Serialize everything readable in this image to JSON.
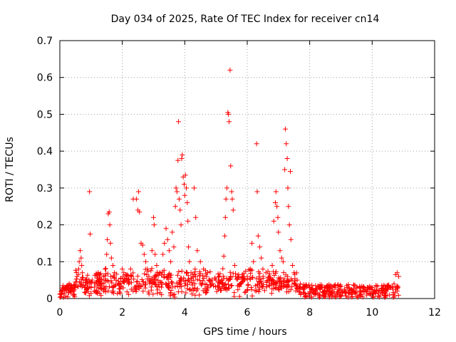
{
  "chart_data": {
    "type": "scatter",
    "title": "Day 034 of 2025, Rate Of TEC Index for receiver cn14",
    "xlabel": "GPS time / hours",
    "ylabel": "ROTI / TECUs",
    "xlim": [
      0,
      12
    ],
    "ylim": [
      0,
      0.7
    ],
    "xticks": [
      0,
      2,
      4,
      6,
      8,
      10,
      12
    ],
    "yticks": [
      0,
      0.1,
      0.2,
      0.3,
      0.4,
      0.5,
      0.6,
      0.7
    ],
    "xtick_labels": [
      "0",
      "2",
      "4",
      "6",
      "8",
      "10",
      "12"
    ],
    "ytick_labels": [
      "0",
      "0.1",
      "0.2",
      "0.3",
      "0.4",
      "0.5",
      "0.6",
      "0.7"
    ],
    "grid": true,
    "marker": "+",
    "color": "#ff0000",
    "series": [
      {
        "name": "ROTI",
        "points": [
          [
            0.0,
            0.012
          ],
          [
            0.05,
            0.02
          ],
          [
            0.1,
            0.035
          ],
          [
            0.15,
            0.015
          ],
          [
            0.2,
            0.03
          ],
          [
            0.25,
            0.025
          ],
          [
            0.3,
            0.04
          ],
          [
            0.35,
            0.018
          ],
          [
            0.4,
            0.028
          ],
          [
            0.45,
            0.03
          ],
          [
            0.5,
            0.045
          ],
          [
            0.55,
            0.06
          ],
          [
            0.6,
            0.08
          ],
          [
            0.62,
            0.1
          ],
          [
            0.65,
            0.13
          ],
          [
            0.68,
            0.11
          ],
          [
            0.7,
            0.09
          ],
          [
            0.72,
            0.07
          ],
          [
            0.75,
            0.05
          ],
          [
            0.8,
            0.03
          ],
          [
            0.85,
            0.025
          ],
          [
            0.9,
            0.04
          ],
          [
            0.95,
            0.29
          ],
          [
            0.97,
            0.175
          ],
          [
            1.0,
            0.03
          ],
          [
            1.1,
            0.02
          ],
          [
            1.2,
            0.035
          ],
          [
            1.3,
            0.04
          ],
          [
            1.4,
            0.06
          ],
          [
            1.45,
            0.08
          ],
          [
            1.5,
            0.12
          ],
          [
            1.52,
            0.16
          ],
          [
            1.55,
            0.23
          ],
          [
            1.58,
            0.235
          ],
          [
            1.6,
            0.2
          ],
          [
            1.62,
            0.15
          ],
          [
            1.65,
            0.11
          ],
          [
            1.7,
            0.09
          ],
          [
            1.75,
            0.07
          ],
          [
            1.8,
            0.05
          ],
          [
            1.9,
            0.04
          ],
          [
            2.0,
            0.08
          ],
          [
            2.05,
            0.07
          ],
          [
            2.1,
            0.05
          ],
          [
            2.2,
            0.04
          ],
          [
            2.3,
            0.06
          ],
          [
            2.35,
            0.27
          ],
          [
            2.45,
            0.27
          ],
          [
            2.5,
            0.24
          ],
          [
            2.52,
            0.29
          ],
          [
            2.55,
            0.235
          ],
          [
            2.6,
            0.15
          ],
          [
            2.65,
            0.145
          ],
          [
            2.7,
            0.12
          ],
          [
            2.75,
            0.1
          ],
          [
            2.8,
            0.08
          ],
          [
            2.85,
            0.06
          ],
          [
            2.9,
            0.05
          ],
          [
            2.95,
            0.13
          ],
          [
            3.0,
            0.22
          ],
          [
            3.02,
            0.2
          ],
          [
            3.05,
            0.12
          ],
          [
            3.1,
            0.09
          ],
          [
            3.2,
            0.07
          ],
          [
            3.3,
            0.12
          ],
          [
            3.35,
            0.15
          ],
          [
            3.4,
            0.19
          ],
          [
            3.45,
            0.16
          ],
          [
            3.5,
            0.13
          ],
          [
            3.55,
            0.1
          ],
          [
            3.6,
            0.18
          ],
          [
            3.65,
            0.14
          ],
          [
            3.7,
            0.25
          ],
          [
            3.72,
            0.3
          ],
          [
            3.75,
            0.29
          ],
          [
            3.78,
            0.375
          ],
          [
            3.8,
            0.48
          ],
          [
            3.82,
            0.27
          ],
          [
            3.85,
            0.24
          ],
          [
            3.88,
            0.2
          ],
          [
            3.9,
            0.38
          ],
          [
            3.92,
            0.39
          ],
          [
            3.95,
            0.33
          ],
          [
            3.98,
            0.31
          ],
          [
            4.0,
            0.28
          ],
          [
            4.02,
            0.335
          ],
          [
            4.05,
            0.3
          ],
          [
            4.08,
            0.26
          ],
          [
            4.1,
            0.21
          ],
          [
            4.12,
            0.14
          ],
          [
            4.15,
            0.1
          ],
          [
            4.2,
            0.07
          ],
          [
            4.3,
            0.3
          ],
          [
            4.35,
            0.22
          ],
          [
            4.4,
            0.13
          ],
          [
            4.5,
            0.1
          ],
          [
            4.6,
            0.08
          ],
          [
            4.7,
            0.06
          ],
          [
            4.8,
            0.05
          ],
          [
            4.9,
            0.04
          ],
          [
            5.0,
            0.05
          ],
          [
            5.1,
            0.06
          ],
          [
            5.2,
            0.04
          ],
          [
            5.25,
            0.115
          ],
          [
            5.28,
            0.17
          ],
          [
            5.3,
            0.22
          ],
          [
            5.32,
            0.27
          ],
          [
            5.35,
            0.3
          ],
          [
            5.38,
            0.505
          ],
          [
            5.4,
            0.5
          ],
          [
            5.42,
            0.48
          ],
          [
            5.45,
            0.62
          ],
          [
            5.47,
            0.36
          ],
          [
            5.5,
            0.29
          ],
          [
            5.52,
            0.27
          ],
          [
            5.55,
            0.24
          ],
          [
            5.6,
            0.09
          ],
          [
            5.7,
            0.06
          ],
          [
            5.8,
            0.04
          ],
          [
            5.9,
            0.05
          ],
          [
            6.0,
            0.06
          ],
          [
            6.1,
            0.08
          ],
          [
            6.15,
            0.15
          ],
          [
            6.2,
            0.1
          ],
          [
            6.3,
            0.42
          ],
          [
            6.32,
            0.29
          ],
          [
            6.35,
            0.17
          ],
          [
            6.4,
            0.14
          ],
          [
            6.45,
            0.11
          ],
          [
            6.5,
            0.08
          ],
          [
            6.6,
            0.07
          ],
          [
            6.7,
            0.06
          ],
          [
            6.8,
            0.09
          ],
          [
            6.85,
            0.21
          ],
          [
            6.9,
            0.26
          ],
          [
            6.92,
            0.29
          ],
          [
            6.95,
            0.25
          ],
          [
            6.98,
            0.22
          ],
          [
            7.0,
            0.18
          ],
          [
            7.05,
            0.13
          ],
          [
            7.1,
            0.11
          ],
          [
            7.15,
            0.1
          ],
          [
            7.2,
            0.35
          ],
          [
            7.22,
            0.46
          ],
          [
            7.25,
            0.42
          ],
          [
            7.28,
            0.38
          ],
          [
            7.3,
            0.3
          ],
          [
            7.32,
            0.25
          ],
          [
            7.35,
            0.2
          ],
          [
            7.38,
            0.345
          ],
          [
            7.4,
            0.16
          ],
          [
            7.45,
            0.09
          ],
          [
            7.5,
            0.07
          ],
          [
            7.6,
            0.05
          ],
          [
            7.7,
            0.04
          ],
          [
            7.8,
            0.03
          ],
          [
            7.9,
            0.035
          ],
          [
            8.0,
            0.03
          ],
          [
            8.2,
            0.025
          ],
          [
            8.4,
            0.03
          ],
          [
            8.6,
            0.02
          ],
          [
            8.8,
            0.035
          ],
          [
            9.0,
            0.025
          ],
          [
            9.2,
            0.03
          ],
          [
            9.4,
            0.02
          ],
          [
            9.6,
            0.03
          ],
          [
            9.8,
            0.025
          ],
          [
            10.0,
            0.03
          ],
          [
            10.2,
            0.015
          ],
          [
            10.4,
            0.02
          ],
          [
            10.5,
            0.025
          ],
          [
            10.6,
            0.03
          ],
          [
            10.7,
            0.04
          ],
          [
            10.75,
            0.065
          ],
          [
            10.8,
            0.07
          ],
          [
            10.85,
            0.06
          ]
        ]
      }
    ]
  }
}
